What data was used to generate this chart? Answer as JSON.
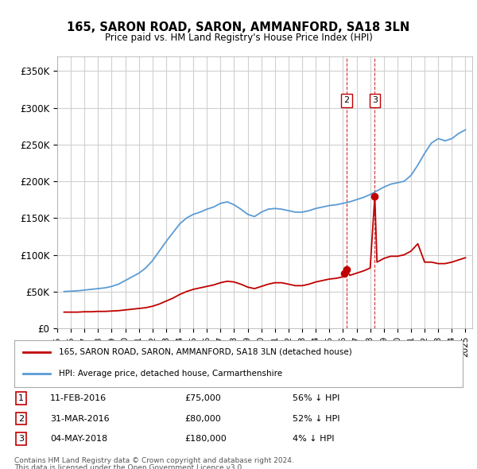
{
  "title": "165, SARON ROAD, SARON, AMMANFORD, SA18 3LN",
  "subtitle": "Price paid vs. HM Land Registry's House Price Index (HPI)",
  "ylabel_ticks": [
    "£0",
    "£50K",
    "£100K",
    "£150K",
    "£200K",
    "£250K",
    "£300K",
    "£350K"
  ],
  "ytick_values": [
    0,
    50000,
    100000,
    150000,
    200000,
    250000,
    300000,
    350000
  ],
  "ylim": [
    0,
    370000
  ],
  "xlim_start": 1995.0,
  "xlim_end": 2025.5,
  "hpi_color": "#5b9bd5",
  "price_color": "#c00000",
  "vline_color_dashed": "#c00000",
  "background_color": "#ffffff",
  "grid_color": "#d0d0d0",
  "legend_label_red": "165, SARON ROAD, SARON, AMMANFORD, SA18 3LN (detached house)",
  "legend_label_blue": "HPI: Average price, detached house, Carmarthenshire",
  "transactions": [
    {
      "num": 1,
      "date": "11-FEB-2016",
      "price": 75000,
      "hpi_pct": "56% ↓ HPI",
      "x": 2016.12
    },
    {
      "num": 2,
      "date": "31-MAR-2016",
      "price": 80000,
      "hpi_pct": "52% ↓ HPI",
      "x": 2016.25
    },
    {
      "num": 3,
      "date": "04-MAY-2018",
      "price": 180000,
      "hpi_pct": "4% ↓ HPI",
      "x": 2018.34
    }
  ],
  "footer_line1": "Contains HM Land Registry data © Crown copyright and database right 2024.",
  "footer_line2": "This data is licensed under the Open Government Licence v3.0.",
  "hpi_data": {
    "years": [
      1995.5,
      1996.0,
      1996.5,
      1997.0,
      1997.5,
      1998.0,
      1998.5,
      1999.0,
      1999.5,
      2000.0,
      2000.5,
      2001.0,
      2001.5,
      2002.0,
      2002.5,
      2003.0,
      2003.5,
      2004.0,
      2004.5,
      2005.0,
      2005.5,
      2006.0,
      2006.5,
      2007.0,
      2007.5,
      2008.0,
      2008.5,
      2009.0,
      2009.5,
      2010.0,
      2010.5,
      2011.0,
      2011.5,
      2012.0,
      2012.5,
      2013.0,
      2013.5,
      2014.0,
      2014.5,
      2015.0,
      2015.5,
      2016.0,
      2016.5,
      2017.0,
      2017.5,
      2018.0,
      2018.5,
      2019.0,
      2019.5,
      2020.0,
      2020.5,
      2021.0,
      2021.5,
      2022.0,
      2022.5,
      2023.0,
      2023.5,
      2024.0,
      2024.5,
      2025.0
    ],
    "values": [
      50000,
      50500,
      51000,
      52000,
      53000,
      54000,
      55000,
      57000,
      60000,
      65000,
      70000,
      75000,
      82000,
      92000,
      105000,
      118000,
      130000,
      142000,
      150000,
      155000,
      158000,
      162000,
      165000,
      170000,
      172000,
      168000,
      162000,
      155000,
      152000,
      158000,
      162000,
      163000,
      162000,
      160000,
      158000,
      158000,
      160000,
      163000,
      165000,
      167000,
      168000,
      170000,
      172000,
      175000,
      178000,
      182000,
      187000,
      192000,
      196000,
      198000,
      200000,
      208000,
      222000,
      238000,
      252000,
      258000,
      255000,
      258000,
      265000,
      270000
    ]
  },
  "red_line_data": {
    "years": [
      1995.5,
      1996.0,
      1996.5,
      1997.0,
      1997.5,
      1998.0,
      1998.5,
      1999.0,
      1999.5,
      2000.0,
      2000.5,
      2001.0,
      2001.5,
      2002.0,
      2002.5,
      2003.0,
      2003.5,
      2004.0,
      2004.5,
      2005.0,
      2005.5,
      2006.0,
      2006.5,
      2007.0,
      2007.5,
      2008.0,
      2008.5,
      2009.0,
      2009.5,
      2010.0,
      2010.5,
      2011.0,
      2011.5,
      2012.0,
      2012.5,
      2013.0,
      2013.5,
      2014.0,
      2014.5,
      2015.0,
      2015.5,
      2016.0,
      2016.12,
      2016.25,
      2016.5,
      2017.0,
      2017.5,
      2018.0,
      2018.34,
      2018.5,
      2019.0,
      2019.5,
      2020.0,
      2020.5,
      2021.0,
      2021.5,
      2022.0,
      2022.5,
      2023.0,
      2023.5,
      2024.0,
      2024.5,
      2025.0
    ],
    "values": [
      22000,
      22000,
      22000,
      22500,
      22500,
      23000,
      23000,
      23500,
      24000,
      25000,
      26000,
      27000,
      28000,
      30000,
      33000,
      37000,
      41000,
      46000,
      50000,
      53000,
      55000,
      57000,
      59000,
      62000,
      64000,
      63000,
      60000,
      56000,
      54000,
      57000,
      60000,
      62000,
      62000,
      60000,
      58000,
      58000,
      60000,
      63000,
      65000,
      67000,
      68000,
      70000,
      75000,
      80000,
      72000,
      75000,
      78000,
      82000,
      180000,
      90000,
      95000,
      98000,
      98000,
      100000,
      105000,
      115000,
      90000,
      90000,
      88000,
      88000,
      90000,
      93000,
      96000
    ]
  }
}
